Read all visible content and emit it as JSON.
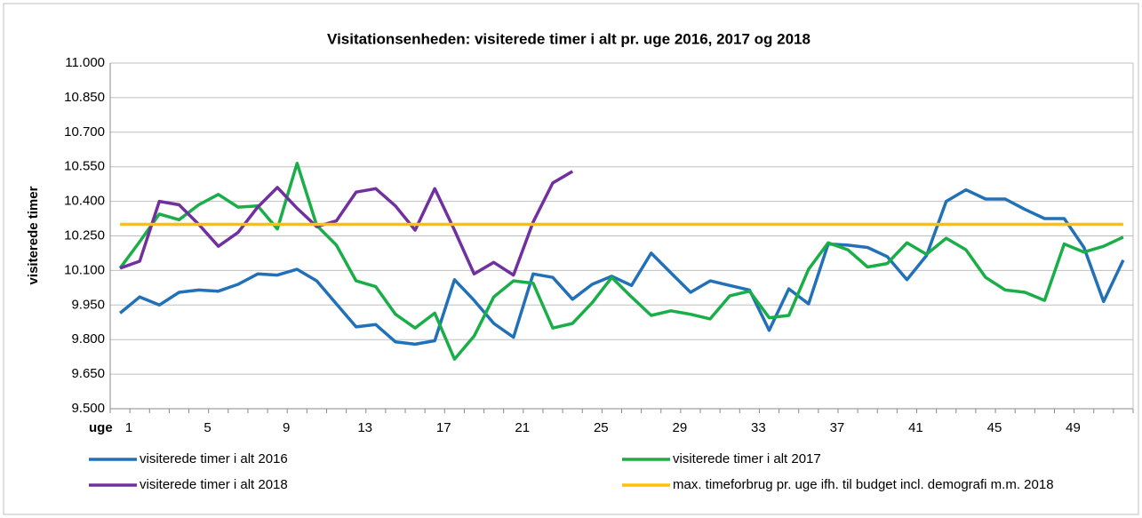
{
  "chart_data": {
    "type": "line",
    "title": "Visitationsenheden: visiterede timer i alt pr. uge 2016, 2017 og 2018",
    "y_label": "visiterede timer",
    "x_label": "uge",
    "categories": [
      "1",
      null,
      null,
      null,
      "5",
      null,
      null,
      null,
      "9",
      null,
      null,
      null,
      "13",
      null,
      null,
      null,
      "17",
      null,
      null,
      null,
      "21",
      null,
      null,
      null,
      "25",
      null,
      null,
      null,
      "29",
      null,
      null,
      null,
      "33",
      null,
      null,
      null,
      "37",
      null,
      null,
      null,
      "41",
      null,
      null,
      null,
      "45",
      null,
      null,
      null,
      "49",
      null,
      null,
      null
    ],
    "series": [
      {
        "name": "visiterede timer i alt 2016",
        "color": "#2170b8",
        "values": [
          9915,
          9985,
          9950,
          10005,
          10015,
          10010,
          10040,
          10085,
          10080,
          10105,
          10055,
          9955,
          9855,
          9865,
          9790,
          9780,
          9795,
          10060,
          9970,
          9870,
          9810,
          10085,
          10070,
          9975,
          10040,
          10075,
          10035,
          10175,
          10090,
          10005,
          10055,
          10035,
          10015,
          9840,
          10020,
          9955,
          10215,
          10210,
          10200,
          10160,
          10060,
          10165,
          10400,
          10450,
          10410,
          10410,
          10365,
          10325,
          10325,
          10200,
          9965,
          10145
        ]
      },
      {
        "name": "visiterede timer i alt 2017",
        "color": "#1aae48",
        "values": [
          10110,
          10225,
          10345,
          10320,
          10385,
          10430,
          10375,
          10380,
          10280,
          10565,
          10295,
          10210,
          10055,
          10030,
          9910,
          9850,
          9915,
          9715,
          9815,
          9985,
          10055,
          10045,
          9850,
          9870,
          9960,
          10070,
          9985,
          9905,
          9925,
          9910,
          9890,
          9990,
          10010,
          9895,
          9905,
          10105,
          10220,
          10190,
          10115,
          10130,
          10220,
          10170,
          10240,
          10190,
          10070,
          10015,
          10005,
          9970,
          10215,
          10180,
          10205,
          10245
        ]
      },
      {
        "name": "visiterede timer i alt 2018",
        "color": "#7030a0",
        "values": [
          10110,
          10140,
          10400,
          10385,
          10300,
          10205,
          10265,
          10375,
          10460,
          10370,
          10290,
          10315,
          10440,
          10455,
          10380,
          10275,
          10455,
          10275,
          10085,
          10135,
          10080,
          10310,
          10480,
          10530,
          null,
          null,
          null,
          null,
          null,
          null,
          null,
          null,
          null,
          null,
          null,
          null,
          null,
          null,
          null,
          null,
          null,
          null,
          null,
          null,
          null,
          null,
          null,
          null,
          null,
          null,
          null,
          null
        ]
      },
      {
        "name": "max. timeforbrug pr. uge ifh. til budget incl. demografi m.m. 2018",
        "color": "#ffc000",
        "values": [
          10300,
          10300,
          10300,
          10300,
          10300,
          10300,
          10300,
          10300,
          10300,
          10300,
          10300,
          10300,
          10300,
          10300,
          10300,
          10300,
          10300,
          10300,
          10300,
          10300,
          10300,
          10300,
          10300,
          10300,
          10300,
          10300,
          10300,
          10300,
          10300,
          10300,
          10300,
          10300,
          10300,
          10300,
          10300,
          10300,
          10300,
          10300,
          10300,
          10300,
          10300,
          10300,
          10300,
          10300,
          10300,
          10300,
          10300,
          10300,
          10300,
          10300,
          10300,
          10300
        ]
      }
    ],
    "ylim": [
      9500,
      11000
    ],
    "yticks": [
      {
        "value": 9500,
        "label": "9.500"
      },
      {
        "value": 9650,
        "label": "9.650"
      },
      {
        "value": 9800,
        "label": "9.800"
      },
      {
        "value": 9950,
        "label": "9.950"
      },
      {
        "value": 10100,
        "label": "10.100"
      },
      {
        "value": 10250,
        "label": "10.250"
      },
      {
        "value": 10400,
        "label": "10.400"
      },
      {
        "value": 10550,
        "label": "10.550"
      },
      {
        "value": 10700,
        "label": "10.700"
      },
      {
        "value": 10850,
        "label": "10.850"
      },
      {
        "value": 11000,
        "label": "11.000"
      }
    ],
    "grid": true
  }
}
